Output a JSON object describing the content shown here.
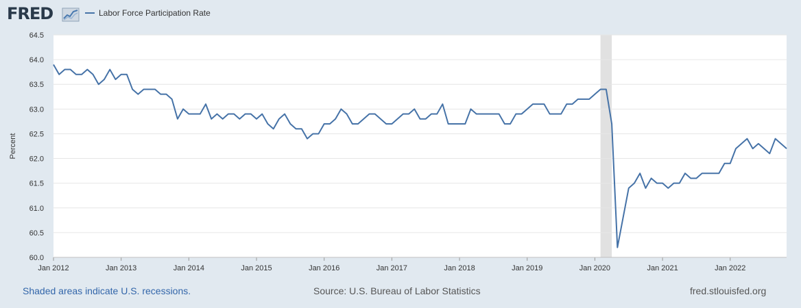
{
  "header": {
    "logo_text": "FRED",
    "legend_label": "Labor Force Participation Rate"
  },
  "footer": {
    "recession_note": "Shaded areas indicate U.S. recessions.",
    "source": "Source: U.S. Bureau of Labor Statistics",
    "site": "fred.stlouisfed.org"
  },
  "colors": {
    "series": "#4572a7",
    "recession": "#e1e1e1",
    "background": "#e1e9f0"
  },
  "chart_data": {
    "type": "line",
    "title": "",
    "xlabel": "",
    "ylabel": "Percent",
    "ylim": [
      60.0,
      64.5
    ],
    "yticks": [
      "60.0",
      "60.5",
      "61.0",
      "61.5",
      "62.0",
      "62.5",
      "63.0",
      "63.5",
      "64.0",
      "64.5"
    ],
    "xticks": [
      "Jan 2012",
      "Jan 2013",
      "Jan 2014",
      "Jan 2015",
      "Jan 2016",
      "Jan 2017",
      "Jan 2018",
      "Jan 2019",
      "Jan 2020",
      "Jan 2021",
      "Jan 2022"
    ],
    "x_start": "Jan 2012",
    "frequency": "monthly",
    "recessions": [
      {
        "start_month_index": 97,
        "end_month_index": 99
      }
    ],
    "series": [
      {
        "name": "Labor Force Participation Rate",
        "values": [
          63.9,
          63.7,
          63.8,
          63.8,
          63.7,
          63.7,
          63.8,
          63.7,
          63.5,
          63.6,
          63.8,
          63.6,
          63.7,
          63.7,
          63.4,
          63.3,
          63.4,
          63.4,
          63.4,
          63.3,
          63.3,
          63.2,
          62.8,
          63.0,
          62.9,
          62.9,
          62.9,
          63.1,
          62.8,
          62.9,
          62.8,
          62.9,
          62.9,
          62.8,
          62.9,
          62.9,
          62.8,
          62.9,
          62.7,
          62.6,
          62.8,
          62.9,
          62.7,
          62.6,
          62.6,
          62.4,
          62.5,
          62.5,
          62.7,
          62.7,
          62.8,
          63.0,
          62.9,
          62.7,
          62.7,
          62.8,
          62.9,
          62.9,
          62.8,
          62.7,
          62.7,
          62.8,
          62.9,
          62.9,
          63.0,
          62.8,
          62.8,
          62.9,
          62.9,
          63.1,
          62.7,
          62.7,
          62.7,
          62.7,
          63.0,
          62.9,
          62.9,
          62.9,
          62.9,
          62.9,
          62.7,
          62.7,
          62.9,
          62.9,
          63.0,
          63.1,
          63.1,
          63.1,
          62.9,
          62.9,
          62.9,
          63.1,
          63.1,
          63.2,
          63.2,
          63.2,
          63.3,
          63.4,
          63.4,
          62.7,
          60.2,
          60.8,
          61.4,
          61.5,
          61.7,
          61.4,
          61.6,
          61.5,
          61.5,
          61.4,
          61.5,
          61.5,
          61.7,
          61.6,
          61.6,
          61.7,
          61.7,
          61.7,
          61.7,
          61.9,
          61.9,
          62.2,
          62.3,
          62.4,
          62.2,
          62.3,
          62.2,
          62.1,
          62.4,
          62.3,
          62.2
        ]
      }
    ]
  }
}
